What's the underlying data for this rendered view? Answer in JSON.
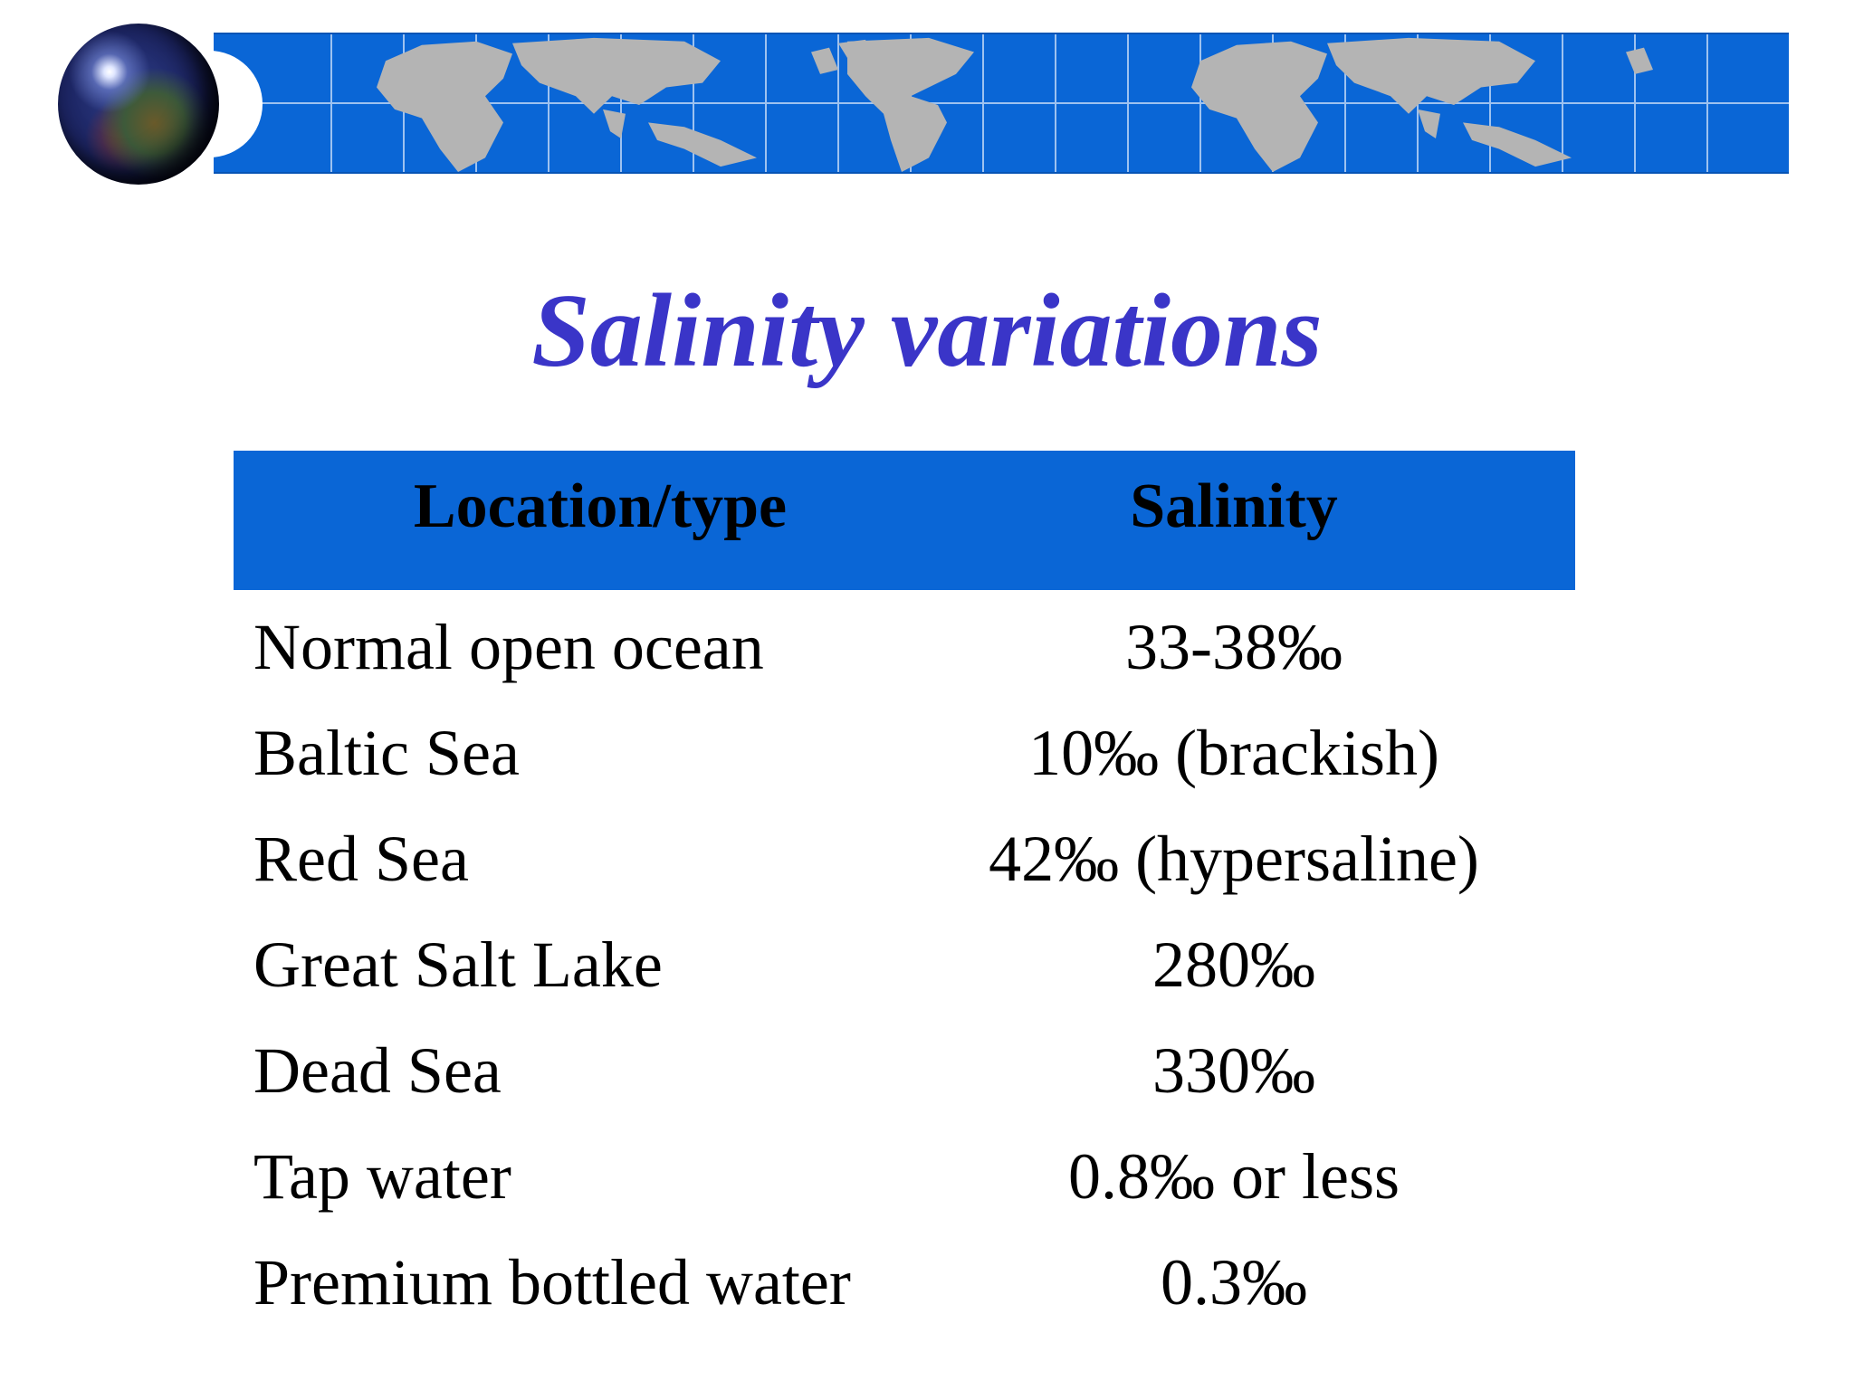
{
  "slide": {
    "title": "Salinity variations"
  },
  "colors": {
    "banner_blue": "#0a66d6",
    "title_blue": "#3a35c8",
    "land_gray": "#b4b4b4"
  },
  "icons": {
    "logo": "globe-icon",
    "banner": "world-map-banner"
  },
  "table": {
    "headers": {
      "location": "Location/type",
      "salinity": "Salinity"
    },
    "rows": [
      {
        "location": "Normal open ocean",
        "salinity": "33-38‰"
      },
      {
        "location": "Baltic Sea",
        "salinity": "10‰ (brackish)"
      },
      {
        "location": "Red Sea",
        "salinity": "42‰ (hypersaline)"
      },
      {
        "location": "Great Salt Lake",
        "salinity": "280‰"
      },
      {
        "location": "Dead Sea",
        "salinity": "330‰"
      },
      {
        "location": "Tap water",
        "salinity": "0.8‰ or less"
      },
      {
        "location": "Premium bottled water",
        "salinity": "0.3‰"
      }
    ]
  }
}
